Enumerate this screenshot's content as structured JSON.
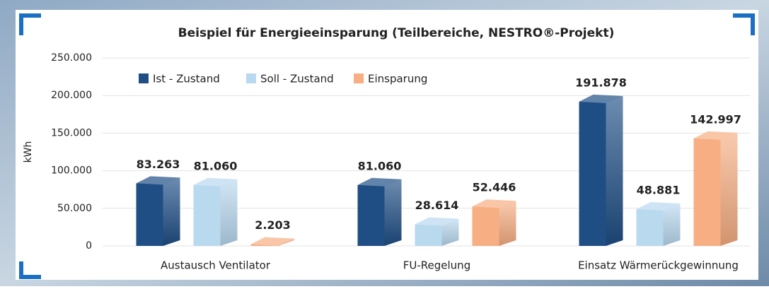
{
  "chart_data": {
    "type": "bar3d",
    "title": "Beispiel für Energieeinsparung (Teilbereiche, NESTRO®-Projekt)",
    "y_label": "kWh",
    "categories": [
      "Austausch Ventilator",
      "FU-Regelung",
      "Einsatz Wärmerückgewinnung"
    ],
    "series": [
      {
        "name": "Ist - Zustand",
        "color": "#1f4e85",
        "values": [
          83263,
          81060,
          191878
        ],
        "value_labels": [
          "83.263",
          "81.060",
          "191.878"
        ]
      },
      {
        "name": "Soll - Zustand",
        "color": "#b9d9ef",
        "values": [
          81060,
          28614,
          48881
        ],
        "value_labels": [
          "81.060",
          "28.614",
          "48.881"
        ]
      },
      {
        "name": "Einsparung",
        "color": "#f7ae83",
        "values": [
          2203,
          52446,
          142997
        ],
        "value_labels": [
          "2.203",
          "52.446",
          "142.997"
        ]
      }
    ],
    "ylim": [
      0,
      250000
    ],
    "yticks": [
      0,
      {
        "value": 50000,
        "label": "50.000"
      },
      {
        "value": 100000,
        "label": "100.000"
      },
      {
        "value": 150000,
        "label": "150.000"
      },
      {
        "value": 200000,
        "label": "200.000"
      },
      {
        "value": 250000,
        "label": "250.000"
      }
    ],
    "legend": "top-left"
  }
}
